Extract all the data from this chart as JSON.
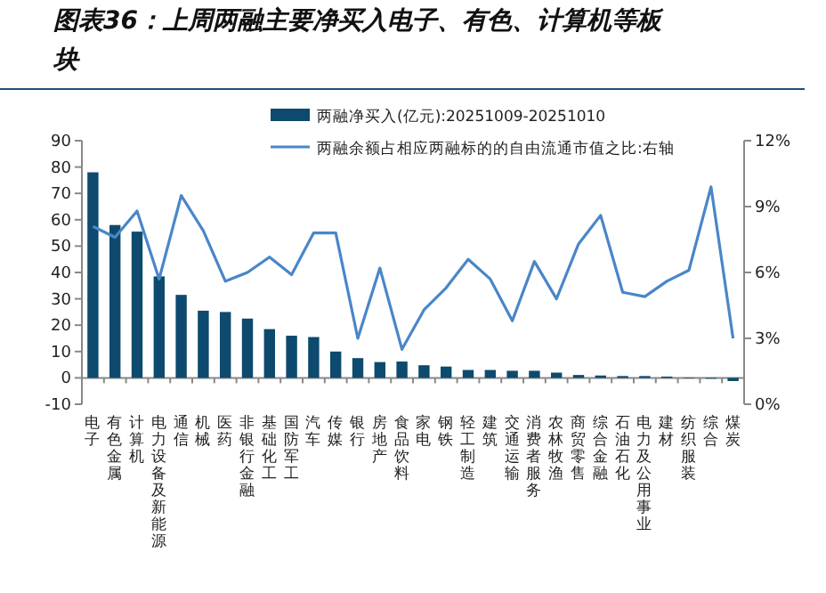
{
  "chart_data": {
    "type": "bar",
    "title": "图表36：上周两融主要净买入电子、有色、计算机等板块",
    "categories": [
      "电子",
      "有色金属",
      "计算机",
      "电力设备及新能源",
      "通信",
      "机械",
      "医药",
      "非银行金融",
      "基础化工",
      "国防军工",
      "汽车",
      "传媒",
      "银行",
      "房地产",
      "食品饮料",
      "家电",
      "钢铁",
      "轻工制造",
      "建筑",
      "交通运输",
      "消费者服务",
      "农林牧渔",
      "商贸零售",
      "综合金融",
      "石油石化",
      "电力及公用事业",
      "建材",
      "纺织服装",
      "综合",
      "煤炭"
    ],
    "series": [
      {
        "name": "两融净买入(亿元):20251009-20251010",
        "color": "#0d4a6e",
        "values": [
          78,
          58,
          55.5,
          38.5,
          31.5,
          25.5,
          25,
          22.5,
          18.5,
          16,
          15.5,
          10,
          7.5,
          6,
          6.2,
          4.8,
          4.3,
          3,
          3,
          2.7,
          2.7,
          2,
          1.1,
          0.9,
          0.7,
          0.7,
          0.5,
          -0.2,
          -0.3,
          -1.2
        ]
      },
      {
        "name": "两融余额占相应两融标的的自由流通市值之比:右轴",
        "type": "line",
        "axis": "y2",
        "color": "#4a86c8",
        "values": [
          8.1,
          7.6,
          8.8,
          5.7,
          9.5,
          7.9,
          5.6,
          6.0,
          6.7,
          5.9,
          7.8,
          7.8,
          3.0,
          6.2,
          2.5,
          4.3,
          5.3,
          6.6,
          5.7,
          3.8,
          6.5,
          4.8,
          7.3,
          8.6,
          5.1,
          4.9,
          5.6,
          6.1,
          9.9,
          3.0
        ]
      }
    ],
    "ylim": [
      -10,
      90
    ],
    "yticks": [
      -10,
      0,
      10,
      20,
      30,
      40,
      50,
      60,
      70,
      80,
      90
    ],
    "y2lim": [
      0,
      12
    ],
    "y2ticks": [
      {
        "value": 0,
        "label": "0%"
      },
      {
        "value": 3,
        "label": "3%"
      },
      {
        "value": 6,
        "label": "6%"
      },
      {
        "value": 9,
        "label": "9%"
      },
      {
        "value": 12,
        "label": "12%"
      }
    ],
    "grid": false,
    "legend": "top"
  }
}
